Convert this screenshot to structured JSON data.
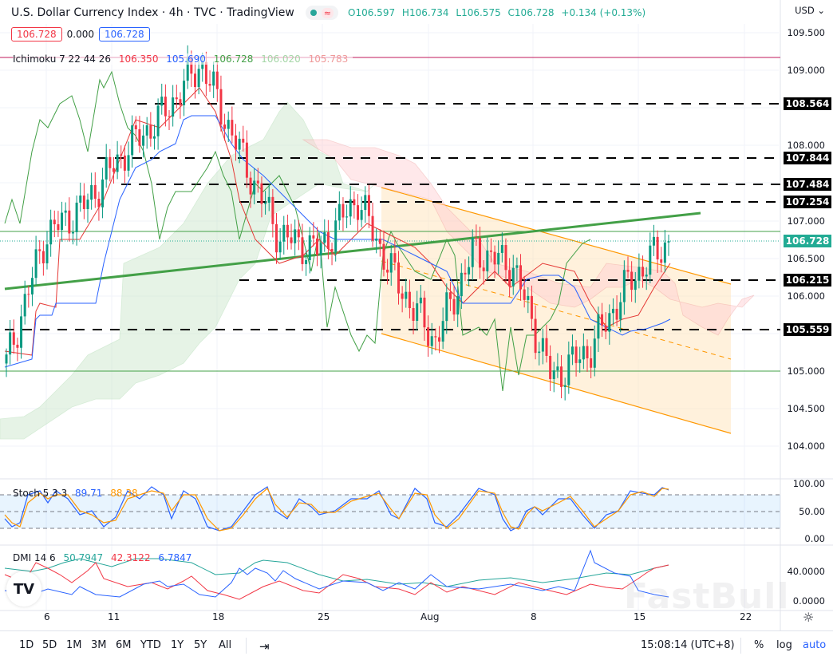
{
  "header": {
    "title": "U.S. Dollar Currency Index · 4h · TVC · TradingView",
    "ohlc": {
      "o": "O106.597",
      "h": "H106.734",
      "l": "L106.575",
      "c": "C106.728",
      "change": "+0.134 (+0.13%)"
    },
    "sell_price": "106.728",
    "spread": "0.000",
    "buy_price": "106.728",
    "currency_menu": "USD ⌄"
  },
  "ichimoku": {
    "label": "Ichimoku 7 22 44 26",
    "v1": "106.350",
    "v2": "105.690",
    "v3": "106.728",
    "v4": "106.020",
    "v5": "105.783",
    "colors": {
      "conversion": "#f23645",
      "base": "#2962ff",
      "lagging": "#43a047",
      "spanA": "#a5d6a7",
      "spanB": "#ef9a9a"
    }
  },
  "stoch": {
    "label": "Stoch 5 3 3",
    "k": "89.71",
    "d": "88.38",
    "axis": [
      "100.00",
      "50.00",
      "0.00"
    ]
  },
  "dmi": {
    "label": "DMI 14 6",
    "adx": "50.7947",
    "plus_di": "42.3122",
    "minus_di": "6.7847",
    "axis": [
      "40.0000",
      "0.0000"
    ]
  },
  "price_axis": {
    "ticks": [
      "109.500",
      "109.000",
      "108.000",
      "107.000",
      "106.500",
      "106.000",
      "105.000",
      "104.500",
      "104.000"
    ],
    "tags": [
      "108.564",
      "107.844",
      "107.484",
      "107.254",
      "106.215",
      "105.559"
    ],
    "last_price": "106.728"
  },
  "time_axis": [
    "6",
    "11",
    "18",
    "25",
    "Aug",
    "8",
    "15",
    "22"
  ],
  "toolbar": {
    "ranges": [
      "1D",
      "5D",
      "1M",
      "3M",
      "6M",
      "YTD",
      "1Y",
      "5Y",
      "All"
    ],
    "clock": "15:08:14 (UTC+8)",
    "percent": "%",
    "log": "log",
    "auto": "auto"
  },
  "watermark": "FastBull",
  "chart_data": {
    "type": "line",
    "title": "U.S. Dollar Currency Index · 4h · TVC",
    "xlabel": "",
    "ylabel": "USD",
    "ylim": [
      103.8,
      109.7
    ],
    "x_ticks": [
      "6",
      "11",
      "18",
      "25",
      "Aug",
      "8",
      "15",
      "22"
    ],
    "last_close": 106.728,
    "ohlc_last": {
      "open": 106.597,
      "high": 106.734,
      "low": 106.575,
      "close": 106.728,
      "change": 0.134,
      "change_pct": 0.13
    },
    "horizontal_levels": [
      108.564,
      107.844,
      107.484,
      107.254,
      106.215,
      105.559
    ],
    "approx_close_path": [
      {
        "x": "Jul 5",
        "y": 105.1
      },
      {
        "x": "Jul 6",
        "y": 106.8
      },
      {
        "x": "Jul 8",
        "y": 107.2
      },
      {
        "x": "Jul 11",
        "y": 107.9
      },
      {
        "x": "Jul 13",
        "y": 108.4
      },
      {
        "x": "Jul 14",
        "y": 109.1
      },
      {
        "x": "Jul 18",
        "y": 107.9
      },
      {
        "x": "Jul 20",
        "y": 106.8
      },
      {
        "x": "Jul 25",
        "y": 106.6
      },
      {
        "x": "Jul 27",
        "y": 107.3
      },
      {
        "x": "Jul 29",
        "y": 106.2
      },
      {
        "x": "Aug 1",
        "y": 105.4
      },
      {
        "x": "Aug 4",
        "y": 106.6
      },
      {
        "x": "Aug 8",
        "y": 106.4
      },
      {
        "x": "Aug 10",
        "y": 104.9
      },
      {
        "x": "Aug 12",
        "y": 105.3
      },
      {
        "x": "Aug 15",
        "y": 106.2
      },
      {
        "x": "Aug 16",
        "y": 106.728
      }
    ],
    "series": [
      {
        "name": "Ichimoku Conversion",
        "last": 106.35
      },
      {
        "name": "Ichimoku Base",
        "last": 105.69
      },
      {
        "name": "Lagging Span",
        "last": 106.728
      },
      {
        "name": "Leading Span A",
        "last": 106.02
      },
      {
        "name": "Leading Span B",
        "last": 105.783
      },
      {
        "name": "Stoch %K",
        "last": 89.71
      },
      {
        "name": "Stoch %D",
        "last": 88.38
      },
      {
        "name": "ADX",
        "last": 50.7947
      },
      {
        "name": "+DI",
        "last": 42.3122
      },
      {
        "name": "-DI",
        "last": 6.7847
      }
    ],
    "annotations": [
      "Ascending green trendline from ~106.1 (Jul 5) to ~107.1 (Aug 18)",
      "Descending orange channel from Jul 28 to Aug 22",
      "Horizontal green lines at ~106.85 and ~105.0",
      "Red horizontal line at ~109.18"
    ],
    "grid": true,
    "legend_position": "top-left"
  }
}
